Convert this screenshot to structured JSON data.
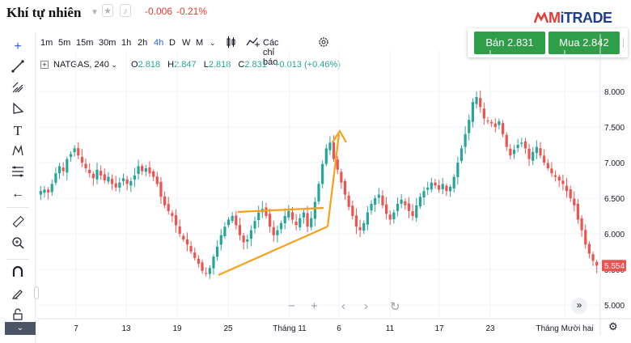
{
  "header": {
    "title": "Khí tự nhiên",
    "change_abs": "-0.006",
    "change_pct": "-0.21%",
    "logo_m": "M",
    "logo_rest": "iTRADE"
  },
  "trade": {
    "sell_label": "Bán 2.831",
    "buy_label": "Mua 2.842"
  },
  "toolbar": {
    "timeframes": [
      "1m",
      "5m",
      "15m",
      "30m",
      "1h",
      "2h",
      "4h",
      "D",
      "W",
      "M"
    ],
    "active_timeframe": "4h",
    "indicators_label": "Các chỉ báo"
  },
  "legend": {
    "symbol": "NATGAS, 240",
    "o_label": "O",
    "o_value": "2.818",
    "h_label": "H",
    "h_value": "2.847",
    "l_label": "L",
    "l_value": "2.818",
    "c_label": "C",
    "c_value": "2.831",
    "change": "+0.013 (+0.46%)"
  },
  "colors": {
    "up": "#26a69a",
    "down": "#ef5350",
    "accent": "#2962ff",
    "pattern": "#f7a11a",
    "buy_sell": "#2e9e49"
  },
  "chart_data": {
    "type": "candlestick",
    "y_ticks": [
      "8.000",
      "7.500",
      "7.000",
      "6.500",
      "6.000",
      "5.500",
      "5.000"
    ],
    "y_range": [
      4.8,
      8.4
    ],
    "x_ticks": [
      "7",
      "13",
      "19",
      "25",
      "Tháng 11",
      "6",
      "11",
      "17",
      "23",
      "Tháng Mười hai"
    ],
    "last_price_label": "5.554",
    "close_series": [
      6.6,
      6.62,
      6.58,
      6.7,
      6.85,
      6.95,
      6.88,
      7.05,
      7.12,
      7.2,
      7.1,
      7.0,
      6.92,
      6.85,
      6.78,
      6.9,
      6.82,
      6.75,
      6.8,
      6.7,
      6.65,
      6.72,
      6.78,
      6.7,
      6.74,
      6.82,
      6.95,
      6.88,
      6.92,
      6.85,
      6.8,
      6.7,
      6.52,
      6.4,
      6.32,
      6.25,
      6.12,
      6.0,
      5.92,
      5.85,
      5.75,
      5.66,
      5.58,
      5.48,
      5.44,
      5.52,
      5.68,
      5.82,
      5.98,
      6.1,
      6.2,
      6.25,
      6.12,
      5.98,
      5.88,
      5.92,
      6.05,
      6.18,
      6.3,
      6.35,
      6.25,
      6.1,
      5.98,
      6.05,
      6.15,
      6.25,
      6.32,
      6.2,
      6.12,
      6.22,
      6.3,
      6.1,
      6.22,
      6.45,
      6.7,
      6.98,
      7.2,
      7.28,
      7.05,
      6.9,
      6.72,
      6.55,
      6.38,
      6.25,
      6.1,
      6.05,
      6.15,
      6.3,
      6.42,
      6.5,
      6.55,
      6.4,
      6.28,
      6.2,
      6.3,
      6.42,
      6.48,
      6.4,
      6.32,
      6.25,
      6.4,
      6.52,
      6.6,
      6.65,
      6.72,
      6.68,
      6.62,
      6.7,
      6.6,
      6.66,
      6.8,
      7.0,
      7.2,
      7.4,
      7.6,
      7.85,
      7.92,
      7.78,
      7.62,
      7.58,
      7.55,
      7.5,
      7.58,
      7.4,
      7.22,
      7.1,
      7.18,
      7.25,
      7.28,
      7.2,
      7.05,
      7.15,
      7.22,
      7.1,
      7.0,
      6.92,
      6.85,
      6.8,
      6.75,
      6.7,
      6.6,
      6.5,
      6.4,
      6.2,
      6.05,
      5.85,
      5.72,
      5.62,
      5.554
    ],
    "pattern": {
      "type": "triangle",
      "top_line": [
        [
          6.0,
          6.29
        ],
        [
          8.3,
          6.35
        ]
      ],
      "bottom_line": [
        [
          5.9,
          5.43
        ],
        [
          8.0,
          6.1
        ]
      ],
      "breakout_arrow": [
        [
          8.0,
          6.1
        ],
        [
          8.4,
          7.42
        ]
      ]
    }
  }
}
